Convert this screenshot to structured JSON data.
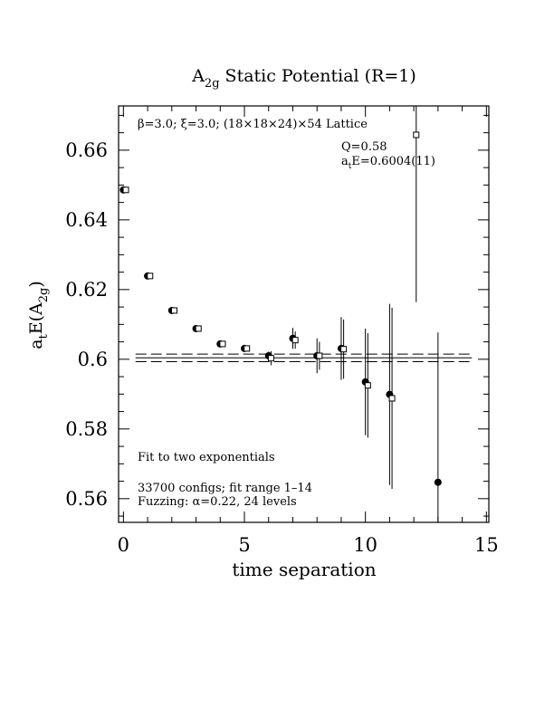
{
  "chart_data": {
    "type": "errorbar",
    "title": {
      "main": "A",
      "sub": "2g",
      "rest": " Static Potential (R=1)"
    },
    "x_label": "time separation",
    "y_label": {
      "main": "a",
      "sub1": "t",
      "mid": "E(A",
      "sub2": "2g",
      "end": ")"
    },
    "annotations": {
      "lattice": "β=3.0; ξ=3.0; (18×18×24)×54 Lattice",
      "q": "Q=0.58",
      "energy": {
        "main": "a",
        "sub": "t",
        "rest": "E=0.6004(11)"
      },
      "fit": "Fit to two exponentials",
      "configs": "33700 configs; fit range 1–14",
      "fuzzing": "Fuzzing: α=0.22, 24 levels"
    },
    "xlim": [
      -0.2,
      15.1
    ],
    "ylim": [
      0.5532,
      0.6727
    ],
    "xticks": [
      0,
      5,
      10,
      15
    ],
    "xminor": [
      1,
      2,
      3,
      4,
      6,
      7,
      8,
      9,
      11,
      12,
      13,
      14
    ],
    "yticks": [
      0.56,
      0.58,
      0.6,
      0.62,
      0.64,
      0.66
    ],
    "yminor": [
      0.555,
      0.565,
      0.57,
      0.575,
      0.585,
      0.59,
      0.595,
      0.605,
      0.61,
      0.615,
      0.625,
      0.63,
      0.635,
      0.645,
      0.65,
      0.655,
      0.665,
      0.67
    ],
    "fit_value": 0.6004,
    "fit_error": 0.0011,
    "fit_x": [
      0.5,
      14.4
    ],
    "series": [
      {
        "marker": "circle",
        "color": "#000000",
        "x": [
          0,
          1,
          2,
          3,
          4,
          5,
          6,
          7,
          8,
          9,
          10,
          11,
          13
        ],
        "values": [
          0.6486,
          0.6239,
          0.614,
          0.6088,
          0.6044,
          0.6031,
          0.601,
          0.606,
          0.601,
          0.6031,
          0.5935,
          0.5899,
          0.5647
        ],
        "errors": [
          0.0006,
          0.0005,
          0.0005,
          0.0006,
          0.0006,
          0.0008,
          0.0012,
          0.003,
          0.005,
          0.009,
          0.0153,
          0.026,
          0.043
        ]
      },
      {
        "marker": "square",
        "color": "#000000",
        "x": [
          0.1,
          1.1,
          2.1,
          3.1,
          4.1,
          5.1,
          6.1,
          7.1,
          8.1,
          9.1,
          10.1,
          11.1,
          12.1
        ],
        "values": [
          0.6486,
          0.6239,
          0.614,
          0.6088,
          0.6044,
          0.6031,
          0.6003,
          0.6055,
          0.601,
          0.6029,
          0.5925,
          0.5888,
          0.6644
        ],
        "errors": [
          0.0005,
          0.0005,
          0.0005,
          0.0005,
          0.0006,
          0.0007,
          0.002,
          0.0025,
          0.004,
          0.0085,
          0.015,
          0.026,
          0.048
        ]
      }
    ]
  }
}
